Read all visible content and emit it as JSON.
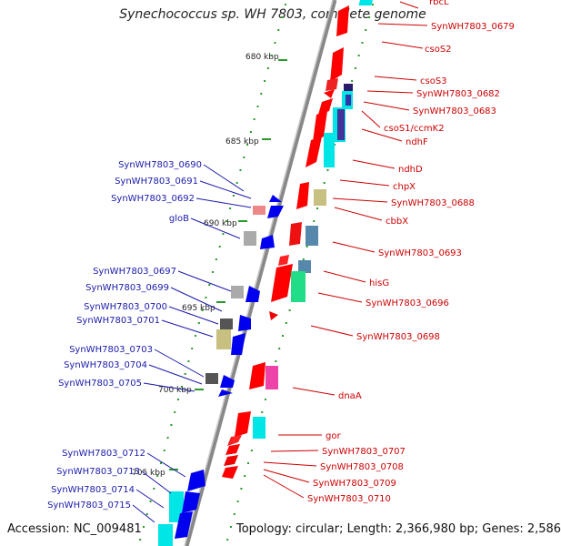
{
  "title": "Synechococcus sp. WH 7803, complete genome",
  "footer": {
    "accession": "Accession: NC_009481",
    "topology": "Topology: circular; Length: 2,366,980 bp; Genes: 2,586"
  },
  "colors": {
    "forward_gene": "#ff0000",
    "reverse_gene": "#0000ff",
    "feature_cyan": "#00e5e5",
    "feature_green": "#22dd88",
    "feature_khaki": "#c8c080",
    "feature_grey": "#9a9a9a",
    "feature_dark_grey": "#444444",
    "feature_purple": "#6633aa",
    "feature_steel": "#5588aa",
    "feature_magenta": "#ee44aa",
    "feature_pink": "#ee8888",
    "backbone": "#888888",
    "tick_green": "#2a9a2a",
    "right_label_color": "#cc0000",
    "left_label_color": "#1a1aaa"
  },
  "kbp_marks": [
    "680 kbp",
    "685 kbp",
    "690 kbp",
    "695 kbp",
    "700 kbp",
    "705 kbp"
  ],
  "right_labels": [
    "rbcL",
    "SynWH7803_0679",
    "csoS2",
    "csoS3",
    "SynWH7803_0682",
    "SynWH7803_0683",
    "csoS1/ccmK2",
    "ndhF",
    "ndhD",
    "chpX",
    "SynWH7803_0688",
    "cbbX",
    "SynWH7803_0693",
    "hisG",
    "SynWH7803_0696",
    "SynWH7803_0698",
    "dnaA",
    "gor",
    "SynWH7803_0707",
    "SynWH7803_0708",
    "SynWH7803_0709",
    "SynWH7803_0710"
  ],
  "left_labels": [
    "SynWH7803_0690",
    "SynWH7803_0691",
    "SynWH7803_0692",
    "gloB",
    "SynWH7803_0697",
    "SynWH7803_0699",
    "SynWH7803_0700",
    "SynWH7803_0701",
    "SynWH7803_0703",
    "SynWH7803_0704",
    "SynWH7803_0705",
    "SynWH7803_0712",
    "SynWH7803_0713",
    "SynWH7803_0714",
    "SynWH7803_0715"
  ]
}
